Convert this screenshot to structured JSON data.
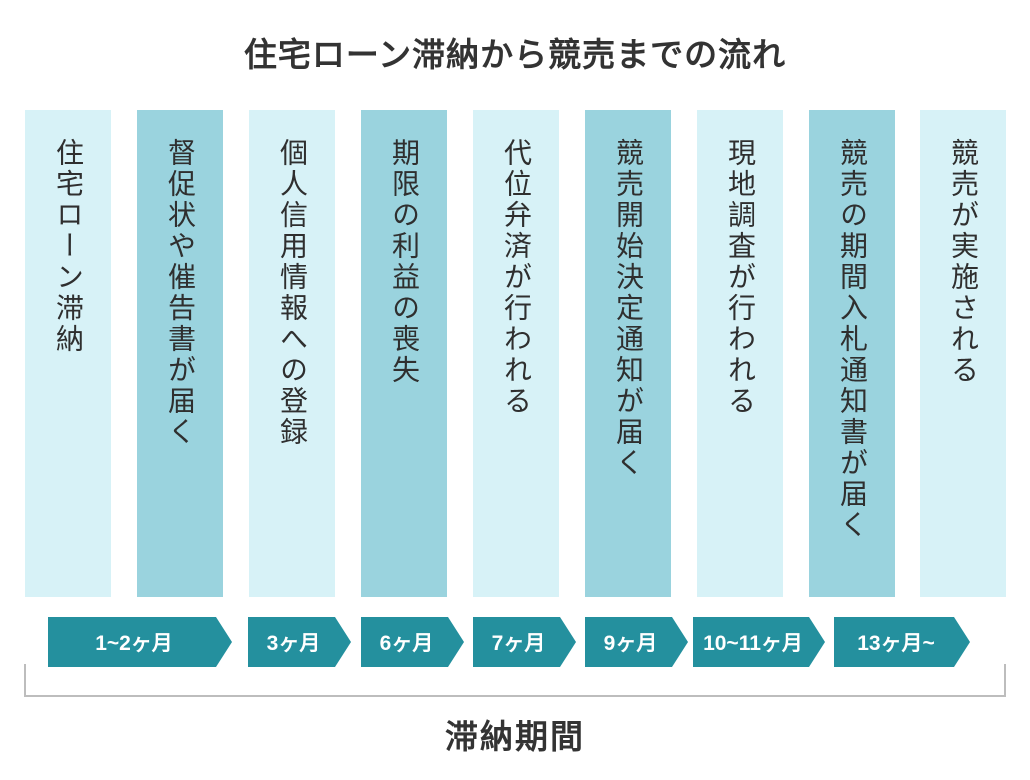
{
  "title": "住宅ローン滞納から競売までの流れ",
  "steps": [
    {
      "label": "住宅ローン滞納",
      "shade": "light"
    },
    {
      "label": "督促状や催告書が届く",
      "shade": "dark"
    },
    {
      "label": "個人信用情報への登録",
      "shade": "light"
    },
    {
      "label": "期限の利益の喪失",
      "shade": "dark"
    },
    {
      "label": "代位弁済が行われる",
      "shade": "light"
    },
    {
      "label": "競売開始決定通知が届く",
      "shade": "dark"
    },
    {
      "label": "現地調査が行われる",
      "shade": "light"
    },
    {
      "label": "競売の期間入札通知書が届く",
      "shade": "dark"
    },
    {
      "label": "競売が実施される",
      "shade": "light"
    }
  ],
  "timeline": [
    {
      "label": "1~2ヶ月"
    },
    {
      "label": "3ヶ月"
    },
    {
      "label": "6ヶ月"
    },
    {
      "label": "7ヶ月"
    },
    {
      "label": "9ヶ月"
    },
    {
      "label": "10~11ヶ月"
    },
    {
      "label": "13ヶ月~"
    }
  ],
  "period_label": "滞納期間",
  "colors": {
    "light_column": "#d7f2f7",
    "dark_column": "#9ad3de",
    "arrow": "#24909e",
    "bracket": "#bdbdbd",
    "text": "#333333"
  }
}
